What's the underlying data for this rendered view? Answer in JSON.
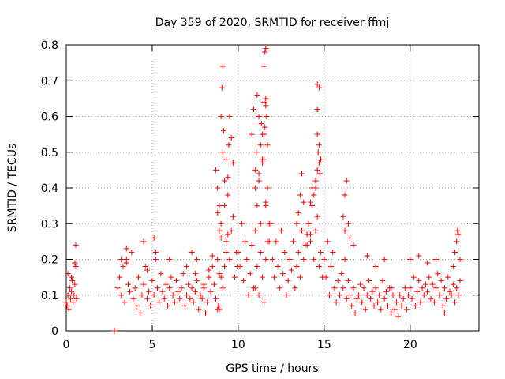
{
  "chart_data": {
    "type": "scatter",
    "title": "Day 359 of 2020, SRMTID for receiver ffmj",
    "xlabel": "GPS time / hours",
    "ylabel": "SRMTID / TECUs",
    "xlim": [
      0,
      24
    ],
    "ylim": [
      0,
      0.8
    ],
    "grid": true,
    "marker": "+",
    "color": "#ff0000",
    "x_ticks": [
      "0",
      "5",
      "10",
      "15",
      "20"
    ],
    "y_ticks": [
      "0",
      "0.1",
      "0.2",
      "0.3",
      "0.4",
      "0.5",
      "0.6",
      "0.7",
      "0.8"
    ],
    "series": [
      {
        "name": "SRMTID",
        "x": [
          0.0,
          0.05,
          0.1,
          0.15,
          0.2,
          0.25,
          0.3,
          0.35,
          0.4,
          0.45,
          0.5,
          0.55,
          0.6,
          0.1,
          0.3,
          0.5,
          0.55,
          2.8,
          2.8,
          3.0,
          3.1,
          3.2,
          3.3,
          3.4,
          3.5,
          3.6,
          3.7,
          3.8,
          3.9,
          4.0,
          4.1,
          4.2,
          4.3,
          4.4,
          4.5,
          4.6,
          4.7,
          4.8,
          4.9,
          5.0,
          5.1,
          5.2,
          5.3,
          5.4,
          5.5,
          5.6,
          5.7,
          5.8,
          5.9,
          6.0,
          6.1,
          6.2,
          6.3,
          6.4,
          6.5,
          6.6,
          6.7,
          6.8,
          6.9,
          7.0,
          7.1,
          7.2,
          7.3,
          7.4,
          7.5,
          7.6,
          7.7,
          7.8,
          7.9,
          8.0,
          8.1,
          8.2,
          8.3,
          8.4,
          8.5,
          8.6,
          8.7,
          8.8,
          8.9,
          3.2,
          3.5,
          3.5,
          4.5,
          4.7,
          5.1,
          5.2,
          6.0,
          7.0,
          7.3,
          7.5,
          7.6,
          8.0,
          8.3,
          8.5,
          8.8,
          8.85,
          8.9,
          8.7,
          8.8,
          8.9,
          9.0,
          9.1,
          9.2,
          9.3,
          9.4,
          9.5,
          9.6,
          9.7,
          9.8,
          9.9,
          9.95,
          9.0,
          9.05,
          9.1,
          9.15,
          9.3,
          9.4,
          9.45,
          9.5,
          9.6,
          9.7,
          8.9,
          9.0,
          9.2,
          9.3,
          8.8,
          9.0,
          9.1,
          9.2,
          9.4,
          10.0,
          10.1,
          10.2,
          10.3,
          10.4,
          10.5,
          10.6,
          10.7,
          10.8,
          10.9,
          11.0,
          11.1,
          11.2,
          11.3,
          11.4,
          11.5,
          11.6,
          11.7,
          11.8,
          11.9,
          10.8,
          10.9,
          11.0,
          11.05,
          11.1,
          11.2,
          11.3,
          11.35,
          11.4,
          11.5,
          11.5,
          11.55,
          11.6,
          11.6,
          11.65,
          11.7,
          11.0,
          11.1,
          11.2,
          11.3,
          11.4,
          11.5,
          11.6,
          11.7,
          11.8,
          11.5,
          11.55,
          11.6,
          11.0,
          11.2,
          11.4,
          11.6,
          12.0,
          12.1,
          12.2,
          12.3,
          12.4,
          12.5,
          12.6,
          12.7,
          12.8,
          12.9,
          13.0,
          13.1,
          13.2,
          13.3,
          13.4,
          13.5,
          13.6,
          13.7,
          13.8,
          13.9,
          13.4,
          13.5,
          13.6,
          13.7,
          13.8,
          14.0,
          14.1,
          14.2,
          14.0,
          14.1,
          14.2,
          14.3,
          14.4,
          14.5,
          14.6,
          14.7,
          14.8,
          14.9,
          14.2,
          14.3,
          14.4,
          14.5,
          14.6,
          14.65,
          14.7,
          14.75,
          14.6,
          14.7,
          14.8,
          14.6,
          14.7,
          14.5,
          14.6,
          15.0,
          15.1,
          15.2,
          15.3,
          15.4,
          15.5,
          15.6,
          15.7,
          15.8,
          15.9,
          16.0,
          16.1,
          16.2,
          16.3,
          16.4,
          16.5,
          16.6,
          16.7,
          16.8,
          16.9,
          16.1,
          16.2,
          16.3,
          16.4,
          16.2,
          16.5,
          16.7,
          17.0,
          17.1,
          17.2,
          17.3,
          17.4,
          17.5,
          17.6,
          17.7,
          17.8,
          17.9,
          18.0,
          18.1,
          18.2,
          18.3,
          18.4,
          18.5,
          18.6,
          18.7,
          18.8,
          18.9,
          17.5,
          18.0,
          18.5,
          18.9,
          19.0,
          19.1,
          19.2,
          19.3,
          19.4,
          19.5,
          19.6,
          19.7,
          19.8,
          19.9,
          20.0,
          20.1,
          20.2,
          20.3,
          20.4,
          20.5,
          20.6,
          20.7,
          20.8,
          20.9,
          21.0,
          21.1,
          21.2,
          21.3,
          21.4,
          21.5,
          21.6,
          21.7,
          21.8,
          21.9,
          22.0,
          22.1,
          22.2,
          22.3,
          22.4,
          22.5,
          22.6,
          22.7,
          22.8,
          22.9,
          20.0,
          20.5,
          21.0,
          21.5,
          22.0,
          22.5,
          22.6,
          22.7,
          22.75,
          22.8,
          22.9
        ],
        "y": [
          0.08,
          0.07,
          0.1,
          0.06,
          0.12,
          0.09,
          0.11,
          0.14,
          0.08,
          0.1,
          0.13,
          0.18,
          0.09,
          0.16,
          0.15,
          0.19,
          0.24,
          0.0,
          0.0,
          0.12,
          0.15,
          0.1,
          0.18,
          0.08,
          0.2,
          0.13,
          0.11,
          0.22,
          0.09,
          0.12,
          0.07,
          0.15,
          0.05,
          0.1,
          0.13,
          0.18,
          0.09,
          0.11,
          0.07,
          0.14,
          0.1,
          0.2,
          0.12,
          0.08,
          0.16,
          0.11,
          0.09,
          0.13,
          0.07,
          0.12,
          0.15,
          0.1,
          0.08,
          0.14,
          0.11,
          0.09,
          0.12,
          0.16,
          0.07,
          0.1,
          0.13,
          0.09,
          0.12,
          0.08,
          0.11,
          0.14,
          0.06,
          0.1,
          0.09,
          0.12,
          0.05,
          0.08,
          0.15,
          0.11,
          0.18,
          0.13,
          0.09,
          0.2,
          0.16,
          0.2,
          0.23,
          0.19,
          0.25,
          0.17,
          0.26,
          0.22,
          0.2,
          0.18,
          0.22,
          0.16,
          0.2,
          0.13,
          0.17,
          0.21,
          0.06,
          0.07,
          0.06,
          0.45,
          0.4,
          0.35,
          0.3,
          0.5,
          0.42,
          0.25,
          0.38,
          0.2,
          0.28,
          0.32,
          0.15,
          0.22,
          0.18,
          0.6,
          0.68,
          0.74,
          0.56,
          0.48,
          0.43,
          0.52,
          0.6,
          0.54,
          0.47,
          0.28,
          0.26,
          0.35,
          0.22,
          0.33,
          0.15,
          0.12,
          0.18,
          0.27,
          0.22,
          0.18,
          0.3,
          0.14,
          0.25,
          0.2,
          0.1,
          0.16,
          0.24,
          0.12,
          0.28,
          0.35,
          0.42,
          0.3,
          0.55,
          0.48,
          0.36,
          0.4,
          0.25,
          0.3,
          0.55,
          0.62,
          0.45,
          0.5,
          0.66,
          0.6,
          0.52,
          0.58,
          0.48,
          0.55,
          0.64,
          0.57,
          0.65,
          0.63,
          0.6,
          0.52,
          0.12,
          0.18,
          0.1,
          0.22,
          0.15,
          0.08,
          0.2,
          0.25,
          0.3,
          0.74,
          0.78,
          0.79,
          0.4,
          0.44,
          0.47,
          0.35,
          0.2,
          0.15,
          0.25,
          0.18,
          0.12,
          0.28,
          0.16,
          0.22,
          0.1,
          0.14,
          0.2,
          0.17,
          0.25,
          0.12,
          0.18,
          0.22,
          0.15,
          0.28,
          0.2,
          0.24,
          0.3,
          0.33,
          0.38,
          0.44,
          0.36,
          0.27,
          0.3,
          0.25,
          0.24,
          0.3,
          0.27,
          0.35,
          0.2,
          0.28,
          0.32,
          0.18,
          0.22,
          0.15,
          0.36,
          0.4,
          0.38,
          0.42,
          0.45,
          0.5,
          0.47,
          0.44,
          0.55,
          0.52,
          0.48,
          0.62,
          0.68,
          0.4,
          0.69,
          0.2,
          0.15,
          0.25,
          0.1,
          0.18,
          0.22,
          0.12,
          0.08,
          0.14,
          0.1,
          0.16,
          0.12,
          0.2,
          0.09,
          0.14,
          0.1,
          0.07,
          0.12,
          0.05,
          0.09,
          0.32,
          0.38,
          0.42,
          0.3,
          0.28,
          0.26,
          0.24,
          0.1,
          0.13,
          0.08,
          0.12,
          0.06,
          0.1,
          0.14,
          0.09,
          0.11,
          0.07,
          0.12,
          0.08,
          0.1,
          0.06,
          0.14,
          0.09,
          0.11,
          0.07,
          0.12,
          0.05,
          0.21,
          0.18,
          0.2,
          0.12,
          0.1,
          0.06,
          0.08,
          0.04,
          0.1,
          0.07,
          0.09,
          0.12,
          0.06,
          0.1,
          0.12,
          0.09,
          0.15,
          0.07,
          0.11,
          0.14,
          0.08,
          0.12,
          0.1,
          0.13,
          0.11,
          0.15,
          0.09,
          0.13,
          0.08,
          0.12,
          0.16,
          0.1,
          0.14,
          0.07,
          0.12,
          0.09,
          0.15,
          0.11,
          0.1,
          0.13,
          0.08,
          0.12,
          0.1,
          0.14,
          0.2,
          0.21,
          0.19,
          0.2,
          0.05,
          0.18,
          0.22,
          0.25,
          0.28,
          0.27,
          0.2
        ]
      }
    ]
  }
}
